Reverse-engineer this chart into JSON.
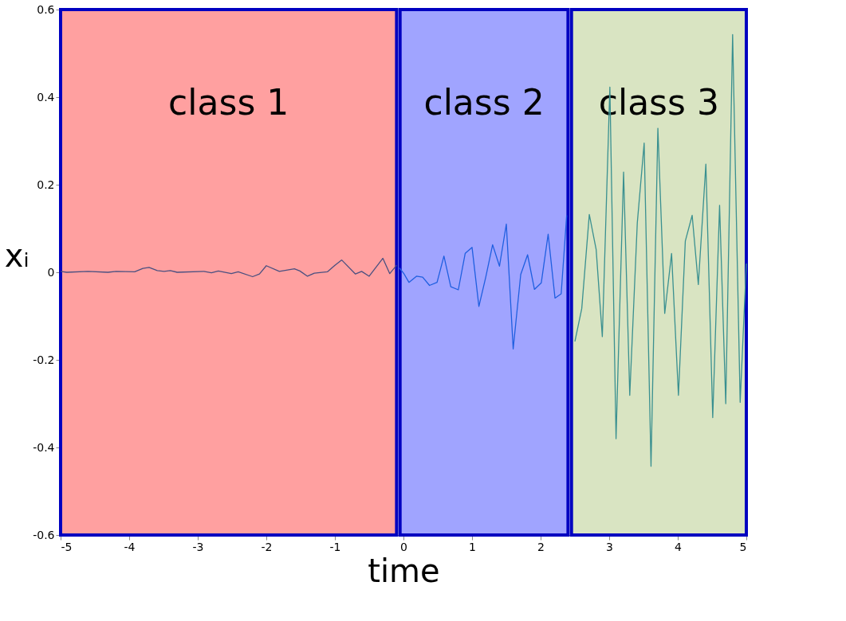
{
  "chart_data": {
    "type": "line",
    "xlabel": "time",
    "ylabel": "xᵢ",
    "xlim": [
      -5,
      5
    ],
    "ylim": [
      -0.6,
      0.6
    ],
    "xticks": [
      -5,
      -4,
      -3,
      -2,
      -1,
      0,
      1,
      2,
      3,
      4,
      5
    ],
    "yticks": [
      -0.6,
      -0.4,
      -0.2,
      0,
      0.2,
      0.4,
      0.6
    ],
    "grid": false,
    "marker": "none",
    "line_style": "solid",
    "bands": [
      {
        "axis": "x",
        "from": -5,
        "to": -0.1,
        "label": "class 1",
        "color": "#ffa0a0"
      },
      {
        "axis": "x",
        "from": -0.05,
        "to": 2.4,
        "label": "class 2",
        "color": "#a0a4ff"
      },
      {
        "axis": "x",
        "from": 2.45,
        "to": 5,
        "label": "class 3",
        "color": "#d9e4c2"
      }
    ],
    "series": [
      {
        "color": "#4a5080",
        "x": [
          -5,
          -4.91,
          -4.6,
          -4.31,
          -4.19,
          -3.92,
          -3.8,
          -3.71,
          -3.59,
          -3.49,
          -3.4,
          -3.3,
          -2.91,
          -2.8,
          -2.7,
          -2.51,
          -2.41,
          -2.2,
          -2.1,
          -2.0,
          -1.81,
          -1.59,
          -1.51,
          -1.4,
          -1.3,
          -1.11,
          -1.0,
          -0.9,
          -0.7,
          -0.61,
          -0.5,
          -0.3,
          -0.2,
          -0.1
        ],
        "values": [
          0.002,
          0.0,
          0.002,
          0.0,
          0.002,
          0.001,
          0.009,
          0.011,
          0.004,
          0.002,
          0.004,
          0.0,
          0.002,
          -0.001,
          0.003,
          -0.003,
          0.001,
          -0.01,
          -0.004,
          0.015,
          0.002,
          0.008,
          0.003,
          -0.009,
          -0.002,
          0.001,
          0.016,
          0.028,
          -0.004,
          0.002,
          -0.009,
          0.032,
          -0.003,
          0.016
        ]
      },
      {
        "color": "#1f5fe0",
        "x": [
          -0.06,
          0.01,
          0.08,
          0.19,
          0.28,
          0.38,
          0.49,
          0.59,
          0.69,
          0.8,
          0.9,
          1.0,
          1.1,
          1.2,
          1.3,
          1.4,
          1.5,
          1.6,
          1.71,
          1.81,
          1.91,
          2.01,
          2.11,
          2.21,
          2.3,
          2.38
        ],
        "values": [
          0.01,
          -0.004,
          -0.023,
          -0.009,
          -0.011,
          -0.03,
          -0.023,
          0.037,
          -0.033,
          -0.04,
          0.043,
          0.057,
          -0.078,
          -0.011,
          0.063,
          0.014,
          0.11,
          -0.175,
          -0.005,
          0.04,
          -0.039,
          -0.024,
          0.087,
          -0.059,
          -0.049,
          0.13
        ]
      },
      {
        "color": "#3a9090",
        "x": [
          2.5,
          2.6,
          2.71,
          2.81,
          2.9,
          3.01,
          3.1,
          3.21,
          3.3,
          3.41,
          3.51,
          3.61,
          3.71,
          3.81,
          3.91,
          4.01,
          4.11,
          4.21,
          4.3,
          4.41,
          4.51,
          4.61,
          4.7,
          4.8,
          4.91,
          5.0
        ],
        "values": [
          -0.158,
          -0.083,
          0.132,
          0.052,
          -0.147,
          0.423,
          -0.38,
          0.229,
          -0.281,
          0.113,
          0.295,
          -0.443,
          0.329,
          -0.094,
          0.043,
          -0.281,
          0.071,
          0.13,
          -0.028,
          0.247,
          -0.332,
          0.153,
          -0.3,
          0.543,
          -0.297,
          0.02
        ]
      }
    ]
  }
}
